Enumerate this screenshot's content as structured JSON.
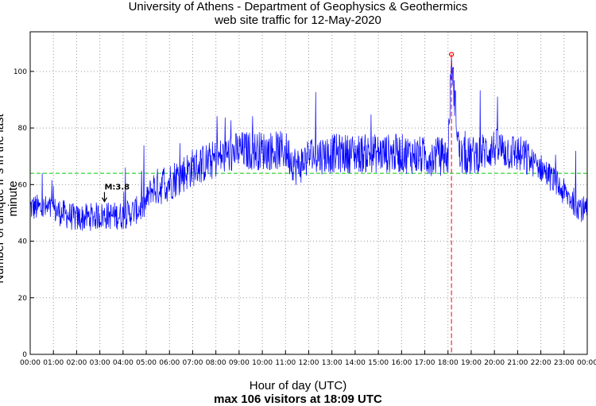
{
  "header": {
    "title": "University of Athens - Department of Geophysics & Geothermics",
    "subtitle": "web site traffic for 12-May-2020"
  },
  "footer": {
    "xlabel": "Hour of day (UTC)",
    "summary": "max 106 visitors at 18:09 UTC"
  },
  "chart_data": {
    "type": "line",
    "title": "University of Athens - Department of Geophysics & Geothermics",
    "subtitle": "web site traffic for 12-May-2020",
    "xlabel": "Hour of day (UTC)",
    "ylabel": "Number of unique IPs in the last minute",
    "xlim": [
      0,
      24
    ],
    "ylim": [
      0,
      114
    ],
    "grid": true,
    "x_ticks": [
      "00:00",
      "01:00",
      "02:00",
      "03:00",
      "04:00",
      "05:00",
      "06:00",
      "07:00",
      "08:00",
      "09:00",
      "10:00",
      "11:00",
      "12:00",
      "13:00",
      "14:00",
      "15:00",
      "16:00",
      "17:00",
      "18:00",
      "19:00",
      "20:00",
      "21:00",
      "22:00",
      "23:00",
      "00:00"
    ],
    "y_ticks": [
      0,
      20,
      40,
      60,
      80,
      100
    ],
    "series_color": "#0000ff",
    "average_line": {
      "value": 64,
      "color": "#00cc00"
    },
    "max_point": {
      "x": 18.15,
      "y": 106,
      "color": "#ff0000"
    },
    "annotation": {
      "text": "M:3.8",
      "x": 3.2,
      "y": 54
    },
    "trend": {
      "x": [
        0,
        1,
        2,
        3,
        4,
        4.9,
        5.2,
        6,
        7,
        8,
        9,
        10,
        11,
        11.5,
        12,
        13,
        14,
        15,
        16,
        17,
        18,
        18.15,
        18.5,
        19,
        20,
        21,
        22,
        22.5,
        23,
        24
      ],
      "y": [
        52,
        51,
        48,
        49,
        49,
        52,
        58,
        61,
        66,
        69,
        72,
        72,
        72,
        66,
        70,
        71,
        71,
        71,
        71,
        70,
        70,
        104,
        70,
        70,
        73,
        71,
        66,
        62,
        57,
        50
      ]
    }
  }
}
